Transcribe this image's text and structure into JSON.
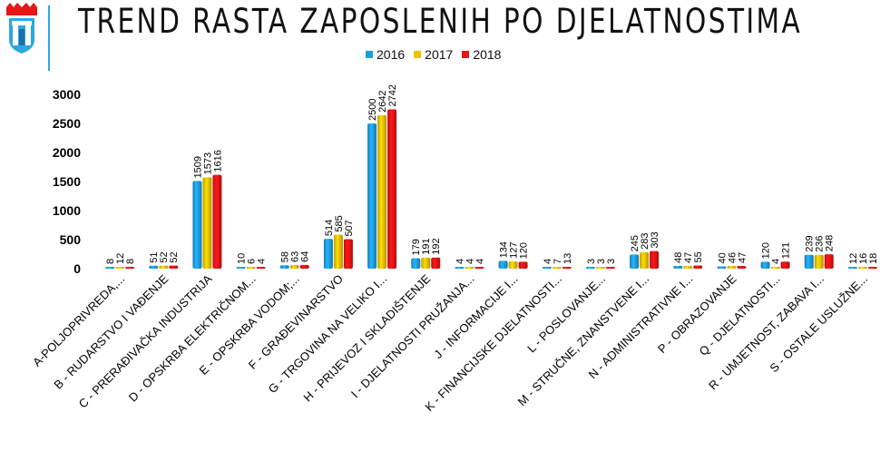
{
  "colors": {
    "2016": "#1e9ee0",
    "2017": "#f3c200",
    "2018": "#e81416",
    "accent": "#2aa8e0"
  },
  "logo": {
    "icon": "city-crest-icon"
  },
  "chart_data": {
    "type": "bar",
    "title": "TREND RASTA ZAPOSLENIH PO DJELATNOSTIMA",
    "xlabel": "",
    "ylabel": "",
    "ylim": [
      0,
      3000
    ],
    "yticks": [
      0,
      500,
      1000,
      1500,
      2000,
      2500,
      3000
    ],
    "ytick_labels": [
      "0",
      "500",
      "1000",
      "1500",
      "2000",
      "2500",
      "3000"
    ],
    "legend_position": "top-center",
    "grid": false,
    "categories": [
      "A-POLJOPRIVREDA,...",
      "B - RUDARSTVO I VAĐENJE",
      "C - PRERAĐIVAČKA INDUSTRIJA",
      "D - OPSKRBA ELEKTRIČNOM...",
      "E - OPSKRBA VODOM;...",
      "F - GRAĐEVINARSTVO",
      "G - TRGOVINA NA VELIKO I...",
      "H - PRIJEVOZ I SKLADIŠTENJE",
      "I - DJELATNOSTI PRUŽANJA...",
      "J - INFORMACIJE I...",
      "K - FINANCIJSKE DJELATNOSTI...",
      "L - POSLOVANJE...",
      "M - STRUČNE, ZNANSTVENE I...",
      "N - ADMINISTRATIVNE I...",
      "P - OBRAZOVANJE",
      "Q - DJELATNOSTI...",
      "R - UMJETNOST, ZABAVA I...",
      "S - OSTALE USLUŽNE..."
    ],
    "series": [
      {
        "name": "2016",
        "values": [
          8,
          51,
          1509,
          10,
          58,
          514,
          2500,
          179,
          4,
          134,
          4,
          3,
          245,
          48,
          40,
          120,
          239,
          12
        ]
      },
      {
        "name": "2017",
        "values": [
          12,
          52,
          1573,
          6,
          63,
          585,
          2642,
          191,
          4,
          127,
          7,
          3,
          283,
          47,
          46,
          4,
          236,
          16
        ]
      },
      {
        "name": "2018",
        "values": [
          8,
          52,
          1616,
          4,
          64,
          507,
          2742,
          192,
          4,
          120,
          13,
          3,
          303,
          55,
          47,
          121,
          248,
          18
        ]
      }
    ]
  }
}
